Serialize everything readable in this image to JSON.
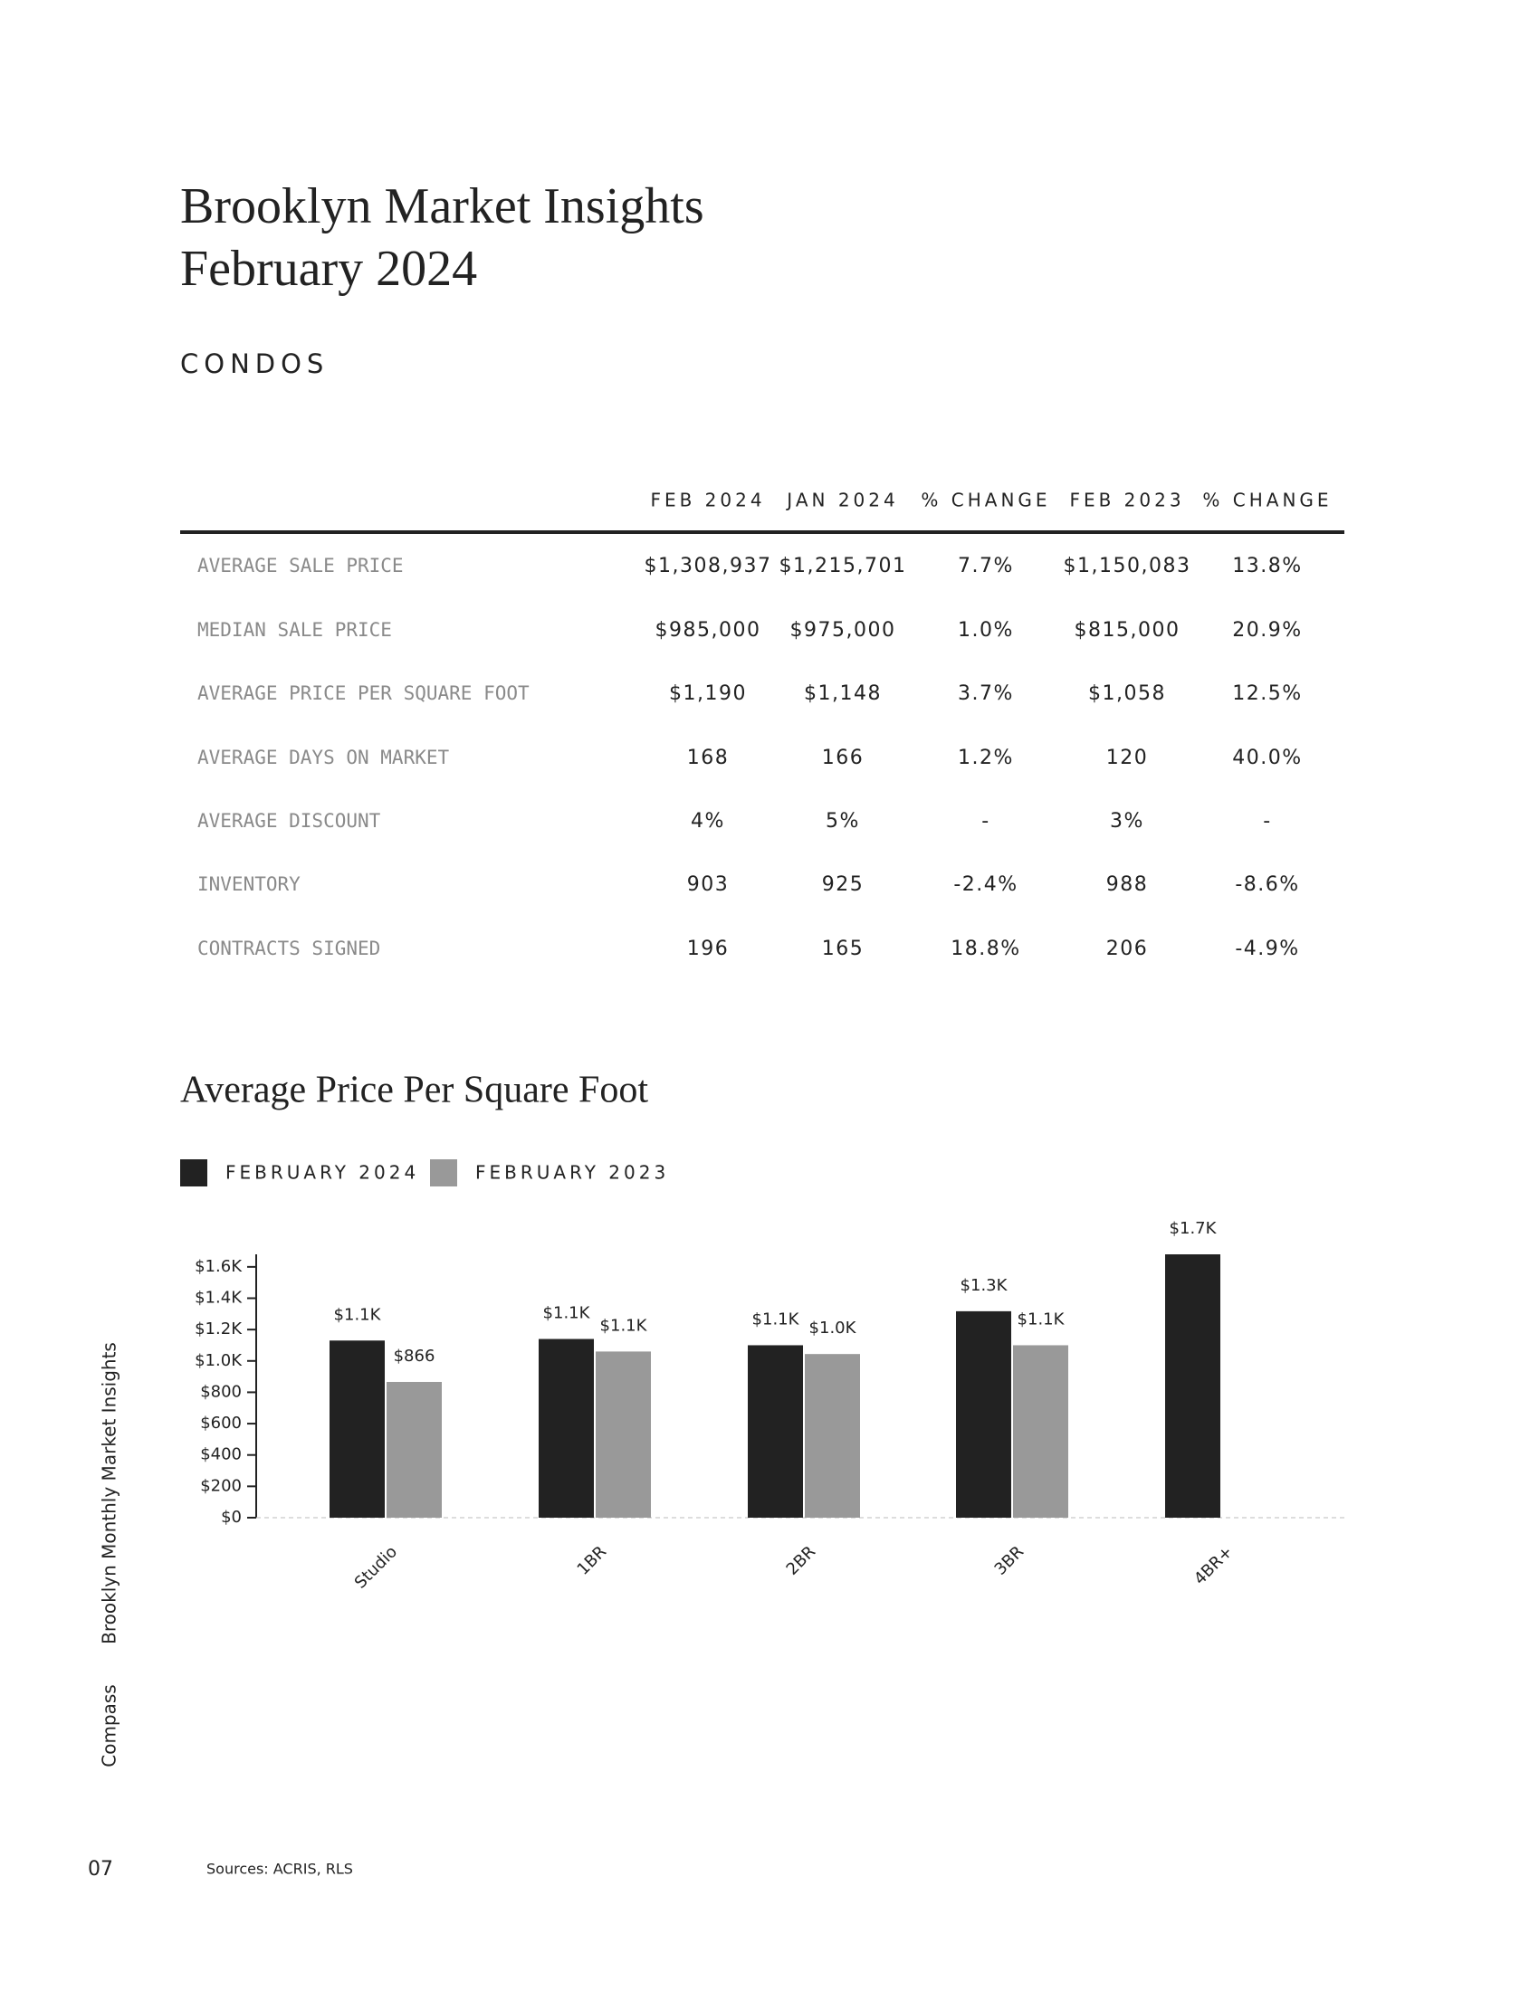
{
  "header": {
    "title_lines": [
      "Brooklyn Market Insights",
      "February 2024"
    ],
    "section": "CONDOS"
  },
  "table": {
    "columns": [
      "FEB 2024",
      "JAN 2024",
      "% CHANGE",
      "FEB 2023",
      "% CHANGE"
    ],
    "rows": [
      [
        "AVERAGE SALE PRICE",
        "$1,308,937",
        "$1,215,701",
        "7.7%",
        "$1,150,083",
        "13.8%"
      ],
      [
        "MEDIAN SALE PRICE",
        "$985,000",
        "$975,000",
        "1.0%",
        "$815,000",
        "20.9%"
      ],
      [
        "AVERAGE PRICE PER SQUARE FOOT",
        "$1,190",
        "$1,148",
        "3.7%",
        "$1,058",
        "12.5%"
      ],
      [
        "AVERAGE DAYS ON MARKET",
        "168",
        "166",
        "1.2%",
        "120",
        "40.0%"
      ],
      [
        "AVERAGE DISCOUNT",
        "4%",
        "5%",
        "-",
        "3%",
        "-"
      ],
      [
        "INVENTORY",
        "903",
        "925",
        "-2.4%",
        "988",
        "-8.6%"
      ],
      [
        "CONTRACTS SIGNED",
        "196",
        "165",
        "18.8%",
        "206",
        "-4.9%"
      ]
    ]
  },
  "chart_data": {
    "type": "bar",
    "title": "Average Price Per Square Foot",
    "categories": [
      "Studio",
      "1BR",
      "2BR",
      "3BR",
      "4BR+"
    ],
    "series": [
      {
        "name": "FEBRUARY 2024",
        "color": "#222222",
        "values": [
          1130,
          1140,
          1100,
          1317,
          1680
        ],
        "value_labels": [
          "$1.1K",
          "$1.1K",
          "$1.1K",
          "$1.3K",
          "$1.7K"
        ]
      },
      {
        "name": "FEBRUARY 2023",
        "color": "#999999",
        "values": [
          866,
          1060,
          1044,
          1100,
          null
        ],
        "value_labels": [
          "$866",
          "$1.1K",
          "$1.0K",
          "$1.1K",
          null
        ]
      }
    ],
    "ylim": [
      0,
      1680
    ],
    "yticks": [
      {
        "value": 0,
        "label": "$0"
      },
      {
        "value": 200,
        "label": "$200"
      },
      {
        "value": 400,
        "label": "$400"
      },
      {
        "value": 600,
        "label": "$600"
      },
      {
        "value": 800,
        "label": "$800"
      },
      {
        "value": 1000,
        "label": "$1.0K"
      },
      {
        "value": 1200,
        "label": "$1.2K"
      },
      {
        "value": 1400,
        "label": "$1.4K"
      },
      {
        "value": 1600,
        "label": "$1.6K"
      }
    ]
  },
  "sidebar": {
    "publication": "Brooklyn Monthly Market Insights",
    "brand": "Compass",
    "page": "07"
  },
  "footer": {
    "sources": "Sources: ACRIS, RLS"
  }
}
